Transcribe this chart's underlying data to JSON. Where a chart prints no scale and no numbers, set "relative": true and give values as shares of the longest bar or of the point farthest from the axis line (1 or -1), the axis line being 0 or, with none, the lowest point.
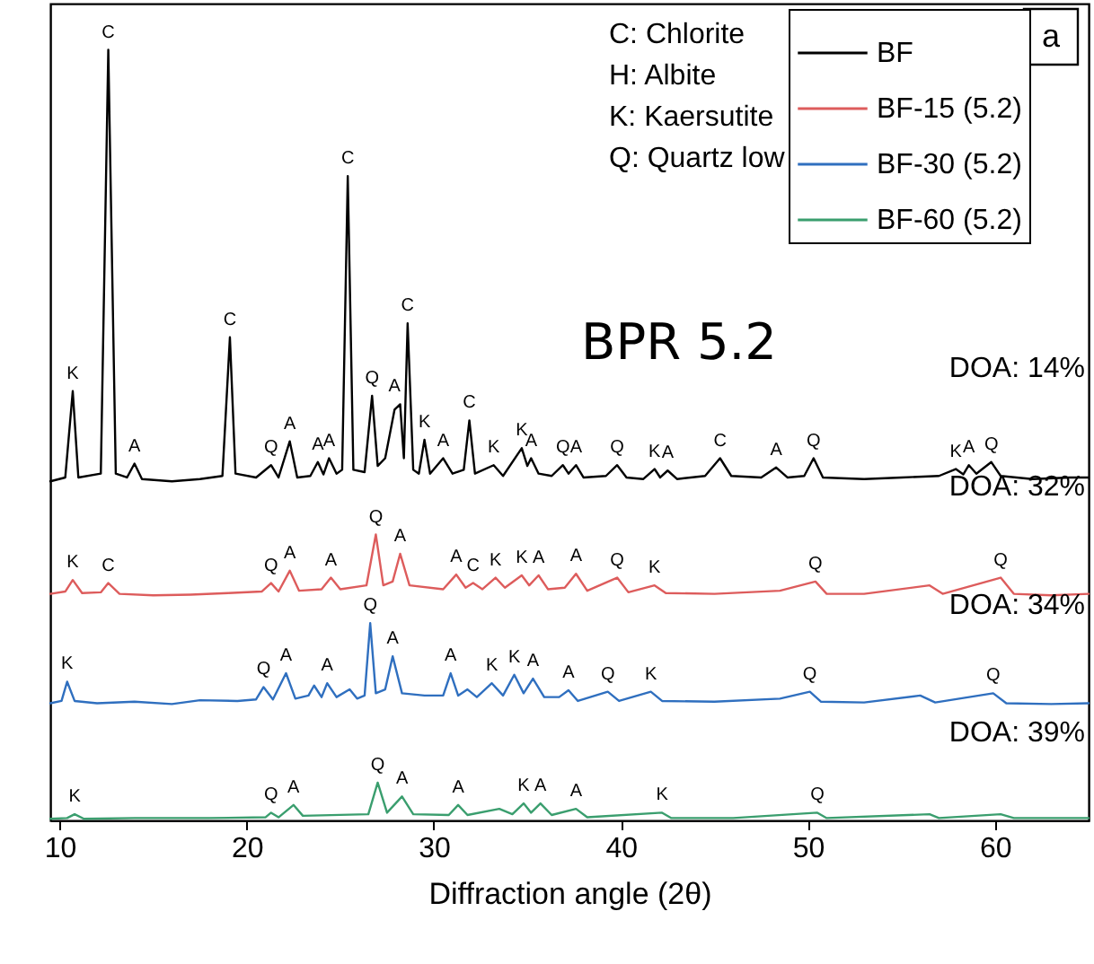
{
  "chart_data": {
    "type": "line",
    "relative": true,
    "xlabel": "Diffraction angle (2θ)",
    "xlim": [
      9.5,
      65
    ],
    "xticks": [
      10,
      20,
      30,
      40,
      50,
      60
    ],
    "tick_labels": "x",
    "legend": "top right",
    "series": [
      {
        "name": "BF",
        "color": "#000000",
        "x": [
          9.5,
          10.3,
          10.7,
          11.0,
          12.2,
          12.6,
          13.0,
          13.6,
          14.0,
          14.4,
          16,
          17.5,
          18.7,
          19.1,
          19.4,
          20.5,
          21.3,
          21.7,
          22.3,
          22.7,
          23.4,
          23.8,
          24.1,
          24.4,
          24.8,
          25.1,
          25.4,
          25.7,
          26.3,
          26.7,
          27.0,
          27.4,
          27.9,
          28.2,
          28.4,
          28.6,
          28.9,
          29.2,
          29.5,
          29.8,
          30.5,
          31.0,
          31.6,
          31.9,
          32.2,
          33.2,
          33.7,
          34.7,
          35.0,
          35.2,
          35.6,
          36.3,
          36.9,
          37.2,
          37.6,
          38.0,
          39.2,
          39.8,
          40.3,
          41.2,
          41.8,
          42.1,
          42.5,
          43,
          44.5,
          45.3,
          45.9,
          47.5,
          48.3,
          48.9,
          49.8,
          50.3,
          50.8,
          53,
          55,
          57,
          57.9,
          58.3,
          58.6,
          59.0,
          59.8,
          60.3,
          62,
          64,
          65
        ],
        "values": [
          0.44,
          0.445,
          0.557,
          0.445,
          0.45,
          1.0,
          0.45,
          0.445,
          0.463,
          0.443,
          0.44,
          0.443,
          0.447,
          0.627,
          0.45,
          0.445,
          0.461,
          0.445,
          0.492,
          0.445,
          0.447,
          0.465,
          0.449,
          0.47,
          0.45,
          0.455,
          0.836,
          0.455,
          0.452,
          0.551,
          0.46,
          0.47,
          0.533,
          0.54,
          0.47,
          0.645,
          0.455,
          0.45,
          0.494,
          0.45,
          0.47,
          0.45,
          0.455,
          0.519,
          0.45,
          0.461,
          0.447,
          0.483,
          0.46,
          0.47,
          0.45,
          0.447,
          0.461,
          0.45,
          0.461,
          0.445,
          0.447,
          0.461,
          0.445,
          0.443,
          0.456,
          0.445,
          0.454,
          0.443,
          0.447,
          0.47,
          0.447,
          0.445,
          0.458,
          0.445,
          0.447,
          0.47,
          0.445,
          0.443,
          0.445,
          0.447,
          0.456,
          0.449,
          0.461,
          0.45,
          0.465,
          0.447,
          0.443,
          0.445,
          0.445
        ]
      },
      {
        "name": "BF-15 (5.2)",
        "color": "#dd5c5c",
        "x": [
          9.5,
          10.3,
          10.7,
          11.2,
          12.2,
          12.6,
          13.2,
          15,
          17,
          19,
          20.8,
          21.3,
          21.7,
          22.3,
          22.8,
          24.0,
          24.5,
          25.0,
          26.4,
          26.9,
          27.3,
          27.8,
          28.2,
          28.7,
          30.5,
          31.2,
          31.7,
          32.1,
          32.6,
          33.3,
          33.8,
          34.7,
          35.1,
          35.6,
          36.1,
          37.0,
          37.6,
          38.2,
          39.8,
          40.4,
          41.8,
          42.4,
          45,
          48.5,
          50.4,
          51,
          53,
          56.5,
          57.2,
          60.3,
          61,
          63,
          65
        ],
        "values": [
          0.294,
          0.297,
          0.312,
          0.295,
          0.296,
          0.308,
          0.294,
          0.292,
          0.293,
          0.295,
          0.297,
          0.308,
          0.297,
          0.324,
          0.298,
          0.3,
          0.315,
          0.3,
          0.305,
          0.371,
          0.305,
          0.31,
          0.346,
          0.305,
          0.3,
          0.319,
          0.302,
          0.308,
          0.3,
          0.315,
          0.302,
          0.318,
          0.305,
          0.318,
          0.3,
          0.302,
          0.32,
          0.298,
          0.315,
          0.296,
          0.305,
          0.295,
          0.294,
          0.298,
          0.31,
          0.294,
          0.294,
          0.305,
          0.294,
          0.315,
          0.294,
          0.292,
          0.294
        ]
      },
      {
        "name": "BF-30 (5.2)",
        "color": "#2f6fbf",
        "x": [
          9.5,
          10.1,
          10.4,
          10.8,
          12,
          14,
          16,
          17.5,
          19.5,
          20.5,
          20.9,
          21.4,
          22.1,
          22.6,
          23.3,
          23.6,
          24.0,
          24.3,
          24.8,
          25.5,
          25.9,
          26.3,
          26.6,
          26.9,
          27.4,
          27.8,
          28.3,
          29.5,
          30.5,
          30.9,
          31.3,
          31.8,
          32.3,
          33.1,
          33.7,
          34.3,
          34.8,
          35.3,
          35.9,
          36.7,
          37.2,
          37.7,
          39.3,
          39.9,
          41.6,
          42.2,
          45,
          48.5,
          50.1,
          50.7,
          53,
          56,
          56.8,
          59.9,
          60.6,
          63,
          65
        ],
        "values": [
          0.152,
          0.155,
          0.18,
          0.155,
          0.152,
          0.154,
          0.151,
          0.156,
          0.155,
          0.157,
          0.173,
          0.157,
          0.191,
          0.158,
          0.162,
          0.175,
          0.16,
          0.178,
          0.16,
          0.17,
          0.158,
          0.162,
          0.256,
          0.165,
          0.17,
          0.213,
          0.165,
          0.162,
          0.162,
          0.191,
          0.162,
          0.17,
          0.16,
          0.178,
          0.162,
          0.189,
          0.165,
          0.184,
          0.16,
          0.16,
          0.169,
          0.155,
          0.167,
          0.155,
          0.167,
          0.155,
          0.154,
          0.158,
          0.167,
          0.154,
          0.153,
          0.162,
          0.153,
          0.165,
          0.152,
          0.151,
          0.152
        ]
      },
      {
        "name": "BF-60 (5.2)",
        "color": "#3a9e6e",
        "x": [
          9.5,
          10.4,
          10.8,
          11.3,
          14,
          18,
          21,
          21.3,
          21.7,
          22.5,
          23,
          26.5,
          27.0,
          27.5,
          28.3,
          28.9,
          30.8,
          31.3,
          31.8,
          33.5,
          34.2,
          34.8,
          35.2,
          35.7,
          36.3,
          37.6,
          38.2,
          42.2,
          42.7,
          46,
          50.5,
          51,
          56.5,
          57,
          60.3,
          61,
          65
        ],
        "values": [
          0.002,
          0.003,
          0.008,
          0.002,
          0.003,
          0.003,
          0.004,
          0.01,
          0.004,
          0.02,
          0.006,
          0.008,
          0.049,
          0.01,
          0.031,
          0.008,
          0.007,
          0.02,
          0.007,
          0.015,
          0.008,
          0.022,
          0.01,
          0.022,
          0.007,
          0.015,
          0.004,
          0.01,
          0.003,
          0.003,
          0.01,
          0.003,
          0.008,
          0.003,
          0.008,
          0.003,
          0.003
        ]
      }
    ],
    "annotations": [
      "C: Chlorite",
      "H: Albite",
      "K: Kaersutite",
      "Q: Quartz low",
      "BPR 5.2",
      "a",
      "DOA: 14%",
      "DOA: 32%",
      "DOA: 34%",
      "DOA: 39%",
      {
        "text": "K",
        "x": 10.7,
        "y": 0.557
      },
      {
        "text": "C",
        "x": 12.6,
        "y": 1.0
      },
      {
        "text": "A",
        "x": 14.0,
        "y": 0.463
      },
      {
        "text": "C",
        "x": 19.1,
        "y": 0.627
      },
      {
        "text": "Q",
        "x": 21.3,
        "y": 0.461
      },
      {
        "text": "A",
        "x": 22.3,
        "y": 0.492
      },
      {
        "text": "A",
        "x": 23.8,
        "y": 0.465
      },
      {
        "text": "A",
        "x": 24.4,
        "y": 0.47
      },
      {
        "text": "C",
        "x": 25.4,
        "y": 0.836
      },
      {
        "text": "Q",
        "x": 26.7,
        "y": 0.551
      },
      {
        "text": "A",
        "x": 27.9,
        "y": 0.54
      },
      {
        "text": "C",
        "x": 28.6,
        "y": 0.645
      },
      {
        "text": "K",
        "x": 29.5,
        "y": 0.494
      },
      {
        "text": "A",
        "x": 30.5,
        "y": 0.47
      },
      {
        "text": "C",
        "x": 31.9,
        "y": 0.519
      },
      {
        "text": "K",
        "x": 33.2,
        "y": 0.461
      },
      {
        "text": "K",
        "x": 34.7,
        "y": 0.483
      },
      {
        "text": "A",
        "x": 35.2,
        "y": 0.47
      },
      {
        "text": "Q",
        "x": 36.9,
        "y": 0.461
      },
      {
        "text": "A",
        "x": 37.6,
        "y": 0.461
      },
      {
        "text": "Q",
        "x": 39.8,
        "y": 0.461
      },
      {
        "text": "K",
        "x": 41.8,
        "y": 0.456
      },
      {
        "text": "A",
        "x": 42.5,
        "y": 0.454
      },
      {
        "text": "C",
        "x": 45.3,
        "y": 0.47
      },
      {
        "text": "A",
        "x": 48.3,
        "y": 0.458
      },
      {
        "text": "Q",
        "x": 50.3,
        "y": 0.47
      },
      {
        "text": "K",
        "x": 57.9,
        "y": 0.456
      },
      {
        "text": "A",
        "x": 58.6,
        "y": 0.461
      },
      {
        "text": "Q",
        "x": 59.8,
        "y": 0.465
      },
      {
        "text": "K",
        "x": 10.7,
        "y": 0.312
      },
      {
        "text": "C",
        "x": 12.6,
        "y": 0.308
      },
      {
        "text": "Q",
        "x": 21.3,
        "y": 0.308
      },
      {
        "text": "A",
        "x": 22.3,
        "y": 0.324
      },
      {
        "text": "A",
        "x": 24.5,
        "y": 0.315
      },
      {
        "text": "Q",
        "x": 26.9,
        "y": 0.371
      },
      {
        "text": "A",
        "x": 28.2,
        "y": 0.346
      },
      {
        "text": "A",
        "x": 31.2,
        "y": 0.319
      },
      {
        "text": "C",
        "x": 32.1,
        "y": 0.308
      },
      {
        "text": "K",
        "x": 33.3,
        "y": 0.315
      },
      {
        "text": "K",
        "x": 34.7,
        "y": 0.318
      },
      {
        "text": "A",
        "x": 35.6,
        "y": 0.318
      },
      {
        "text": "A",
        "x": 37.6,
        "y": 0.32
      },
      {
        "text": "Q",
        "x": 39.8,
        "y": 0.315
      },
      {
        "text": "K",
        "x": 41.8,
        "y": 0.305
      },
      {
        "text": "Q",
        "x": 50.4,
        "y": 0.31
      },
      {
        "text": "Q",
        "x": 60.3,
        "y": 0.315
      },
      {
        "text": "K",
        "x": 10.4,
        "y": 0.18
      },
      {
        "text": "Q",
        "x": 20.9,
        "y": 0.173
      },
      {
        "text": "A",
        "x": 22.1,
        "y": 0.191
      },
      {
        "text": "A",
        "x": 24.3,
        "y": 0.178
      },
      {
        "text": "Q",
        "x": 26.6,
        "y": 0.256
      },
      {
        "text": "A",
        "x": 27.8,
        "y": 0.213
      },
      {
        "text": "A",
        "x": 30.9,
        "y": 0.191
      },
      {
        "text": "K",
        "x": 33.1,
        "y": 0.178
      },
      {
        "text": "K",
        "x": 34.3,
        "y": 0.189
      },
      {
        "text": "A",
        "x": 35.3,
        "y": 0.184
      },
      {
        "text": "A",
        "x": 37.2,
        "y": 0.169
      },
      {
        "text": "Q",
        "x": 39.3,
        "y": 0.167
      },
      {
        "text": "K",
        "x": 41.6,
        "y": 0.167
      },
      {
        "text": "Q",
        "x": 50.1,
        "y": 0.167
      },
      {
        "text": "Q",
        "x": 59.9,
        "y": 0.165
      },
      {
        "text": "K",
        "x": 10.8,
        "y": 0.008
      },
      {
        "text": "Q",
        "x": 21.3,
        "y": 0.01
      },
      {
        "text": "A",
        "x": 22.5,
        "y": 0.02
      },
      {
        "text": "Q",
        "x": 27.0,
        "y": 0.049
      },
      {
        "text": "A",
        "x": 28.3,
        "y": 0.031
      },
      {
        "text": "A",
        "x": 31.3,
        "y": 0.02
      },
      {
        "text": "K",
        "x": 34.8,
        "y": 0.022
      },
      {
        "text": "A",
        "x": 35.7,
        "y": 0.022
      },
      {
        "text": "A",
        "x": 37.6,
        "y": 0.015
      },
      {
        "text": "K",
        "x": 42.2,
        "y": 0.01
      },
      {
        "text": "Q",
        "x": 50.5,
        "y": 0.01
      }
    ]
  }
}
